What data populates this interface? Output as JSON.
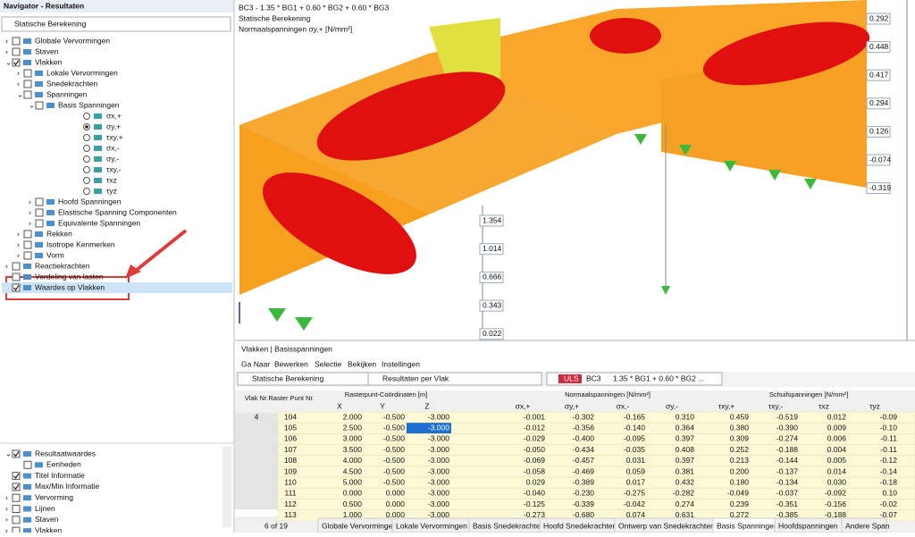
{
  "navigator": {
    "title": "Navigator - Resultaten",
    "dropdown": "Statische Berekening",
    "tree": [
      {
        "label": "Globale Vervormingen",
        "checked": false,
        "expanded": false
      },
      {
        "label": "Staven",
        "checked": false,
        "expanded": false
      },
      {
        "label": "Vlakken",
        "checked": true,
        "expanded": true,
        "children": [
          {
            "label": "Lokale Vervormingen",
            "checked": false,
            "expanded": false
          },
          {
            "label": "Snedekrachten",
            "checked": false,
            "expanded": false
          },
          {
            "label": "Spanningen",
            "checked": false,
            "expanded": true,
            "children": [
              {
                "label": "Basis Spanningen",
                "checked": false,
                "expanded": true,
                "children": [
                  {
                    "label": "σx,+",
                    "radio": false
                  },
                  {
                    "label": "σy,+",
                    "radio": true
                  },
                  {
                    "label": "τxy,+",
                    "radio": false
                  },
                  {
                    "label": "σx,-",
                    "radio": false
                  },
                  {
                    "label": "σy,-",
                    "radio": false
                  },
                  {
                    "label": "τxy,-",
                    "radio": false
                  },
                  {
                    "label": "τxz",
                    "radio": false
                  },
                  {
                    "label": "τyz",
                    "radio": false
                  }
                ]
              },
              {
                "label": "Hoofd Spanningen",
                "checked": false,
                "expanded": false
              },
              {
                "label": "Elastische Spanning Componenten",
                "checked": false,
                "expanded": false
              },
              {
                "label": "Equivalente Spanningen",
                "checked": false,
                "expanded": false
              }
            ]
          },
          {
            "label": "Rekken",
            "checked": false,
            "expanded": false
          },
          {
            "label": "Isotrope Kenmerken",
            "checked": false,
            "expanded": false
          },
          {
            "label": "Vorm",
            "checked": false,
            "expanded": false
          }
        ]
      },
      {
        "label": "Reactiekrachten",
        "checked": false,
        "expanded": false
      },
      {
        "label": "Verdeling van lasten",
        "checked": false
      },
      {
        "label": "Waardes op Vlakken",
        "checked": true,
        "selected": true
      }
    ],
    "display": [
      {
        "label": "Resultaatwaardes",
        "checked": true,
        "expanded": true,
        "children": [
          {
            "label": "Eenheden",
            "checked": false
          }
        ]
      },
      {
        "label": "Titel Informatie",
        "checked": true
      },
      {
        "label": "Max/Min Informatie",
        "checked": true
      },
      {
        "label": "Vervorming",
        "checked": false,
        "expanded": false
      },
      {
        "label": "Lijnen",
        "checked": false,
        "expanded": false
      },
      {
        "label": "Staven",
        "checked": false,
        "expanded": false
      },
      {
        "label": "Vlakken",
        "checked": false,
        "expanded": false
      }
    ]
  },
  "viewport": {
    "info": [
      "BC3 - 1.35 * BG1 + 0.60 * BG2 + 0.60 * BG3",
      "Statische Berekening",
      "Normaalspanningen σy,+ [N/mm²]"
    ],
    "labels_left": [
      "1.354",
      "1.014",
      "0.666",
      "0.343",
      "0.022"
    ],
    "labels_right": [
      "0.292",
      "0.448",
      "0.417",
      "0.294",
      "0.126",
      "-0.074",
      "-0.319"
    ]
  },
  "table": {
    "title": "Vlakken | Basisspanningen",
    "menu": [
      "Ga Naar",
      "Bewerken",
      "Selectie",
      "Bekijken",
      "Instellingen"
    ],
    "toolbar": {
      "analysis": "Statische Berekening",
      "type": "ULS",
      "case": "BC3",
      "combo": "1.35 * BG1 + 0.60 * BG2 ...",
      "mode": "Resultaten per Vlak"
    },
    "groups": [
      "Vlak Nr.",
      "Raster Punt Nr.",
      "Rasterpunt-Coördinaten [m]",
      "Normaalspanningen [N/mm²]",
      "Schuifspanningen [N/mm²]"
    ],
    "columns": [
      "X",
      "Y",
      "Z",
      "σx,+",
      "σy,+",
      "σx,-",
      "σy,-",
      "τxy,+",
      "τxy,-",
      "τxz",
      "τyz"
    ],
    "surface": "4",
    "rows": [
      [
        "104",
        "2.000",
        "-0.500",
        "-3.000",
        "-0.001",
        "-0.302",
        "-0.165",
        "0.310",
        "0.459",
        "-0.519",
        "0.012",
        "-0.09"
      ],
      [
        "105",
        "2.500",
        "-0.500",
        "-3.000",
        "-0.012",
        "-0.356",
        "-0.140",
        "0.364",
        "0.380",
        "-0.390",
        "0.009",
        "-0.10"
      ],
      [
        "106",
        "3.000",
        "-0.500",
        "-3.000",
        "-0.029",
        "-0.400",
        "-0.095",
        "0.397",
        "0.309",
        "-0.274",
        "0.006",
        "-0.11"
      ],
      [
        "107",
        "3.500",
        "-0.500",
        "-3.000",
        "-0.050",
        "-0.434",
        "-0.035",
        "0.408",
        "0.252",
        "-0.188",
        "0.004",
        "-0.11"
      ],
      [
        "108",
        "4.000",
        "-0.500",
        "-3.000",
        "-0.069",
        "-0.457",
        "0.031",
        "0.397",
        "0.213",
        "-0.144",
        "0.005",
        "-0.12"
      ],
      [
        "109",
        "4.500",
        "-0.500",
        "-3.000",
        "-0.058",
        "-0.469",
        "0.059",
        "0.381",
        "0.200",
        "-0.137",
        "0.014",
        "-0.14"
      ],
      [
        "110",
        "5.000",
        "-0.500",
        "-3.000",
        "0.029",
        "-0.389",
        "0.017",
        "0.432",
        "0.180",
        "-0.134",
        "0.030",
        "-0.18"
      ],
      [
        "111",
        "0.000",
        "0.000",
        "-3.000",
        "-0.040",
        "-0.230",
        "-0.275",
        "-0.282",
        "-0.049",
        "-0.037",
        "-0.092",
        "0.10"
      ],
      [
        "112",
        "0.500",
        "0.000",
        "-3.000",
        "-0.125",
        "-0.339",
        "-0.042",
        "0.274",
        "0.239",
        "-0.351",
        "-0.156",
        "-0.02"
      ],
      [
        "113",
        "1.000",
        "0.000",
        "-3.000",
        "-0.273",
        "-0.680",
        "0.074",
        "0.631",
        "0.272",
        "-0.385",
        "-0.188",
        "-0.07"
      ]
    ],
    "pager": "6 of 19",
    "tabs": [
      "Globale Vervormingen",
      "Lokale Vervormingen",
      "Basis Snedekrachten",
      "Hoofd Snedekrachten",
      "Ontwerp van Snedekrachten",
      "Basis Spanningen",
      "Hoofdspanningen",
      "Andere Span"
    ],
    "active_tab": 5
  }
}
